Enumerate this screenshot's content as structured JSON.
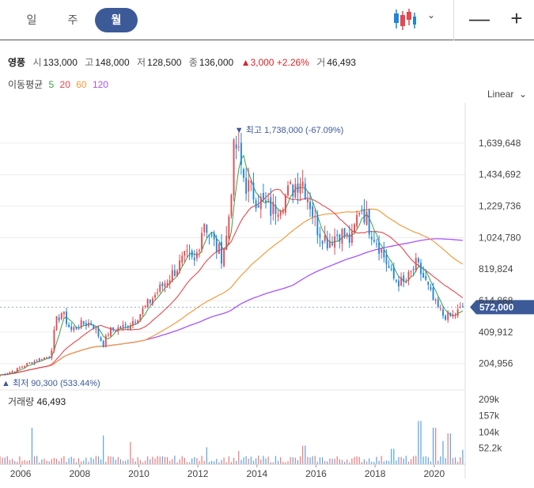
{
  "tabs": [
    {
      "label": "일",
      "active": false
    },
    {
      "label": "주",
      "active": false
    },
    {
      "label": "월",
      "active": true
    }
  ],
  "toolbar": {
    "chart_type_icon": "candlestick-icon",
    "dropdown_icon": "chevron-down-icon",
    "zoom_out": "—",
    "zoom_in": "+"
  },
  "quote": {
    "name": "영풍",
    "open_label": "시",
    "open": "133,000",
    "high_label": "고",
    "high": "148,000",
    "low_label": "저",
    "low": "128,500",
    "close_label": "종",
    "close": "136,000",
    "change": "▲3,000 +2.26%",
    "volume_label": "거",
    "volume": "46,493"
  },
  "ma": {
    "label": "이동평균",
    "periods": [
      "5",
      "20",
      "60",
      "120"
    ],
    "colors": [
      "#3aa14a",
      "#e5494f",
      "#f39c3c",
      "#a855f7"
    ]
  },
  "scale_label": "Linear",
  "volume_panel": {
    "label": "거래량",
    "value": "46,493"
  },
  "colors": {
    "up": "#e5494f",
    "down": "#1f86d8",
    "accent": "#3c5a98",
    "grid": "#ececec"
  },
  "chart_data": {
    "type": "candlestick",
    "x_ticks": [
      "2006",
      "2008",
      "2010",
      "2012",
      "2014",
      "2016",
      "2018",
      "2020"
    ],
    "x_range": [
      2005.3,
      2021.05
    ],
    "y_ticks": [
      204956,
      409912,
      614868,
      819824,
      1024780,
      1229736,
      1434692,
      1639648
    ],
    "y_tick_labels": [
      "204,956",
      "409,912",
      "614,868",
      "819,824",
      "1,024,780",
      "1,229,736",
      "1,434,692",
      "1,639,648"
    ],
    "y_range": [
      90300,
      1850000
    ],
    "last_price": 572000,
    "last_price_label": "572,000",
    "high_annotation": {
      "label": "▼ 최고 1,738,000 (-67.09%)",
      "year": 2013.25,
      "value": 1738000
    },
    "low_annotation": {
      "label": "▲ 최저 90,300 (533.44%)",
      "year": 2005.3,
      "value": 90300
    },
    "volume_ticks": [
      52200,
      104000,
      157000,
      209000
    ],
    "volume_tick_labels": [
      "52.2k",
      "104k",
      "157k",
      "209k"
    ],
    "volume_max": 235000,
    "price_path": [
      [
        2005.3,
        130000
      ],
      [
        2005.8,
        160000
      ],
      [
        2006.2,
        200000
      ],
      [
        2006.7,
        240000
      ],
      [
        2007.0,
        250000
      ],
      [
        2007.2,
        480000
      ],
      [
        2007.4,
        540000
      ],
      [
        2007.7,
        420000
      ],
      [
        2008.0,
        460000
      ],
      [
        2008.4,
        470000
      ],
      [
        2008.8,
        330000
      ],
      [
        2009.0,
        420000
      ],
      [
        2009.6,
        450000
      ],
      [
        2010.0,
        520000
      ],
      [
        2010.5,
        640000
      ],
      [
        2011.0,
        760000
      ],
      [
        2011.3,
        830000
      ],
      [
        2011.6,
        900000
      ],
      [
        2011.9,
        860000
      ],
      [
        2012.2,
        1140000
      ],
      [
        2012.5,
        1000000
      ],
      [
        2012.8,
        910000
      ],
      [
        2013.0,
        1050000
      ],
      [
        2013.25,
        1650000
      ],
      [
        2013.6,
        1380000
      ],
      [
        2014.0,
        1280000
      ],
      [
        2014.5,
        1200000
      ],
      [
        2015.0,
        1300000
      ],
      [
        2015.5,
        1420000
      ],
      [
        2015.8,
        1250000
      ],
      [
        2016.0,
        1100000
      ],
      [
        2016.4,
        1000000
      ],
      [
        2016.8,
        1060000
      ],
      [
        2017.2,
        1000000
      ],
      [
        2017.5,
        1250000
      ],
      [
        2017.8,
        1100000
      ],
      [
        2018.2,
        950000
      ],
      [
        2018.6,
        760000
      ],
      [
        2019.0,
        720000
      ],
      [
        2019.4,
        850000
      ],
      [
        2019.7,
        740000
      ],
      [
        2020.0,
        600000
      ],
      [
        2020.3,
        520000
      ],
      [
        2020.6,
        510000
      ],
      [
        2021.0,
        572000
      ]
    ],
    "volume_spikes": [
      [
        2006.4,
        118000
      ],
      [
        2008.8,
        93000
      ],
      [
        2009.7,
        72000
      ],
      [
        2012.3,
        55000
      ],
      [
        2013.4,
        43000
      ],
      [
        2015.6,
        60000
      ],
      [
        2018.6,
        50000
      ],
      [
        2019.5,
        140000
      ],
      [
        2020.0,
        118000
      ],
      [
        2020.3,
        75000
      ],
      [
        2020.5,
        100000
      ],
      [
        2020.95,
        46493
      ]
    ]
  }
}
